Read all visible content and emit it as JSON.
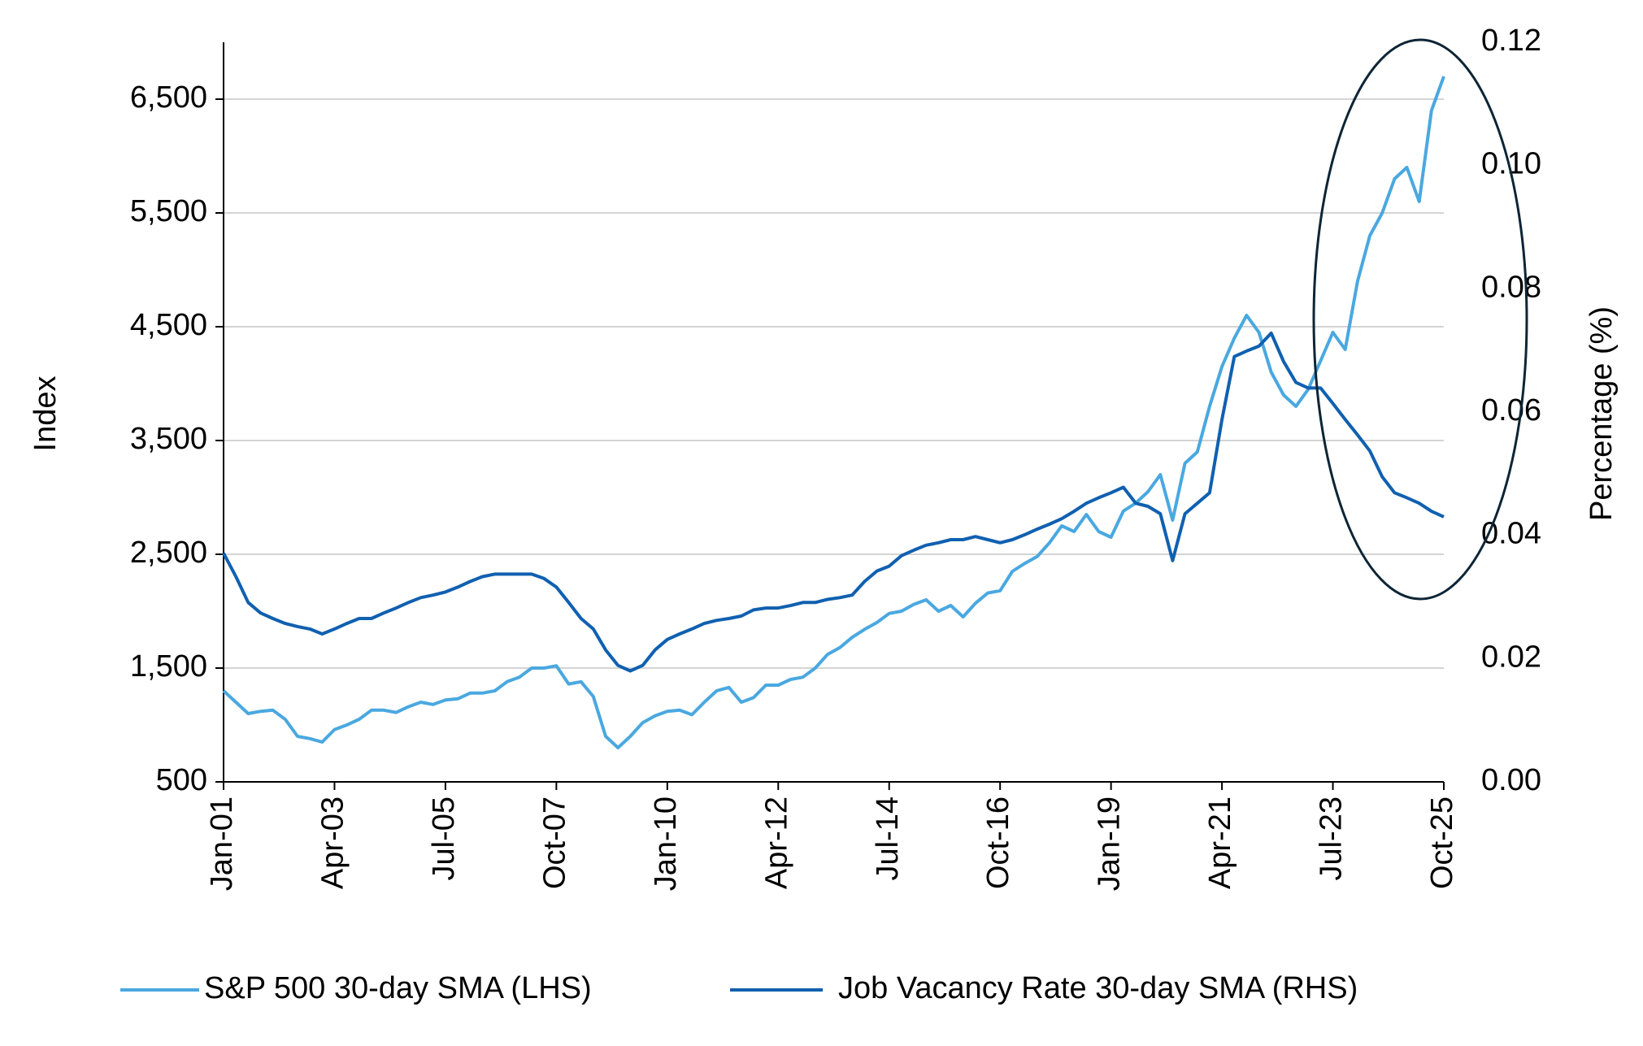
{
  "chart_data": {
    "type": "line",
    "categories": [
      "Jan-01",
      null,
      null,
      null,
      null,
      null,
      null,
      null,
      null,
      "Apr-03",
      null,
      null,
      null,
      null,
      null,
      null,
      null,
      null,
      "Jul-05",
      null,
      null,
      null,
      null,
      null,
      null,
      null,
      null,
      "Oct-07",
      null,
      null,
      null,
      null,
      null,
      null,
      null,
      null,
      "Jan-10",
      null,
      null,
      null,
      null,
      null,
      null,
      null,
      null,
      "Apr-12",
      null,
      null,
      null,
      null,
      null,
      null,
      null,
      null,
      "Jul-14",
      null,
      null,
      null,
      null,
      null,
      null,
      null,
      null,
      "Oct-16",
      null,
      null,
      null,
      null,
      null,
      null,
      null,
      null,
      "Jan-19",
      null,
      null,
      null,
      null,
      null,
      null,
      null,
      null,
      "Apr-21",
      null,
      null,
      null,
      null,
      null,
      null,
      null,
      null,
      "Jul-23",
      null,
      null,
      null,
      null,
      null,
      null,
      null,
      null,
      "Oct-25"
    ],
    "series": [
      {
        "name": "S&P 500 30-day SMA (LHS)",
        "color": "#4aa8e0",
        "axis": "y",
        "values": [
          1300,
          1200,
          1100,
          1120,
          1130,
          1050,
          900,
          880,
          850,
          960,
          1000,
          1050,
          1130,
          1130,
          1110,
          1160,
          1200,
          1180,
          1220,
          1230,
          1280,
          1280,
          1300,
          1380,
          1420,
          1500,
          1500,
          1520,
          1360,
          1380,
          1250,
          900,
          800,
          900,
          1020,
          1080,
          1120,
          1130,
          1090,
          1200,
          1300,
          1330,
          1200,
          1240,
          1350,
          1350,
          1400,
          1420,
          1500,
          1620,
          1680,
          1770,
          1840,
          1900,
          1980,
          2000,
          2060,
          2100,
          2000,
          2050,
          1950,
          2070,
          2160,
          2180,
          2350,
          2420,
          2480,
          2600,
          2750,
          2700,
          2850,
          2700,
          2650,
          2880,
          2950,
          3050,
          3200,
          2800,
          3300,
          3400,
          3800,
          4150,
          4400,
          4600,
          4450,
          4100,
          3900,
          3800,
          3950,
          4200,
          4450,
          4300,
          4900,
          5300,
          5500,
          5800,
          5900,
          5600,
          6400,
          6700
        ]
      },
      {
        "name": "Job Vacancy Rate 30-day SMA (RHS)",
        "color": "#1060b0",
        "axis": "y2",
        "values": [
          0.0371,
          0.0333,
          0.0291,
          0.0274,
          0.0265,
          0.0257,
          0.0252,
          0.0248,
          0.024,
          0.0248,
          0.0257,
          0.0265,
          0.0265,
          0.0274,
          0.0282,
          0.0291,
          0.0299,
          0.0303,
          0.0308,
          0.0316,
          0.0325,
          0.0333,
          0.0337,
          0.0337,
          0.0337,
          0.0337,
          0.033,
          0.0316,
          0.0291,
          0.0265,
          0.0248,
          0.0214,
          0.0189,
          0.018,
          0.0189,
          0.0214,
          0.0231,
          0.024,
          0.0248,
          0.0257,
          0.0262,
          0.0265,
          0.0269,
          0.0279,
          0.0282,
          0.0282,
          0.0286,
          0.0291,
          0.0291,
          0.0296,
          0.0299,
          0.0303,
          0.0325,
          0.0342,
          0.035,
          0.0367,
          0.0376,
          0.0384,
          0.0388,
          0.0393,
          0.0393,
          0.0398,
          0.0393,
          0.0388,
          0.0393,
          0.0401,
          0.041,
          0.0418,
          0.0427,
          0.0439,
          0.0452,
          0.0461,
          0.0469,
          0.0478,
          0.0452,
          0.0447,
          0.0435,
          0.0359,
          0.0435,
          0.0452,
          0.0469,
          0.0588,
          0.069,
          0.0699,
          0.0707,
          0.0728,
          0.0682,
          0.0648,
          0.0639,
          0.0639,
          0.0614,
          0.0588,
          0.0563,
          0.0537,
          0.0495,
          0.0469,
          0.0461,
          0.0452,
          0.0439,
          0.043
        ]
      }
    ],
    "ylabel": "Index",
    "y2label": "Percentage (%)",
    "ylim": [
      500,
      7000
    ],
    "yticks": [
      500,
      {
        "value": 1500,
        "label": "1,500"
      },
      {
        "value": 2500,
        "label": "2,500"
      },
      {
        "value": 3500,
        "label": "3,500"
      },
      {
        "value": 4500,
        "label": "4,500"
      },
      {
        "value": 5500,
        "label": "5,500"
      },
      {
        "value": 6500,
        "label": "6,500"
      }
    ],
    "y2lim": [
      0,
      0.12
    ],
    "y2ticks": [
      {
        "value": 0,
        "label": "0.00"
      },
      0.02,
      0.04,
      0.06,
      0.08,
      {
        "value": 0.1,
        "label": "0.10"
      },
      0.12
    ],
    "grid": true,
    "legend": "bottom"
  }
}
